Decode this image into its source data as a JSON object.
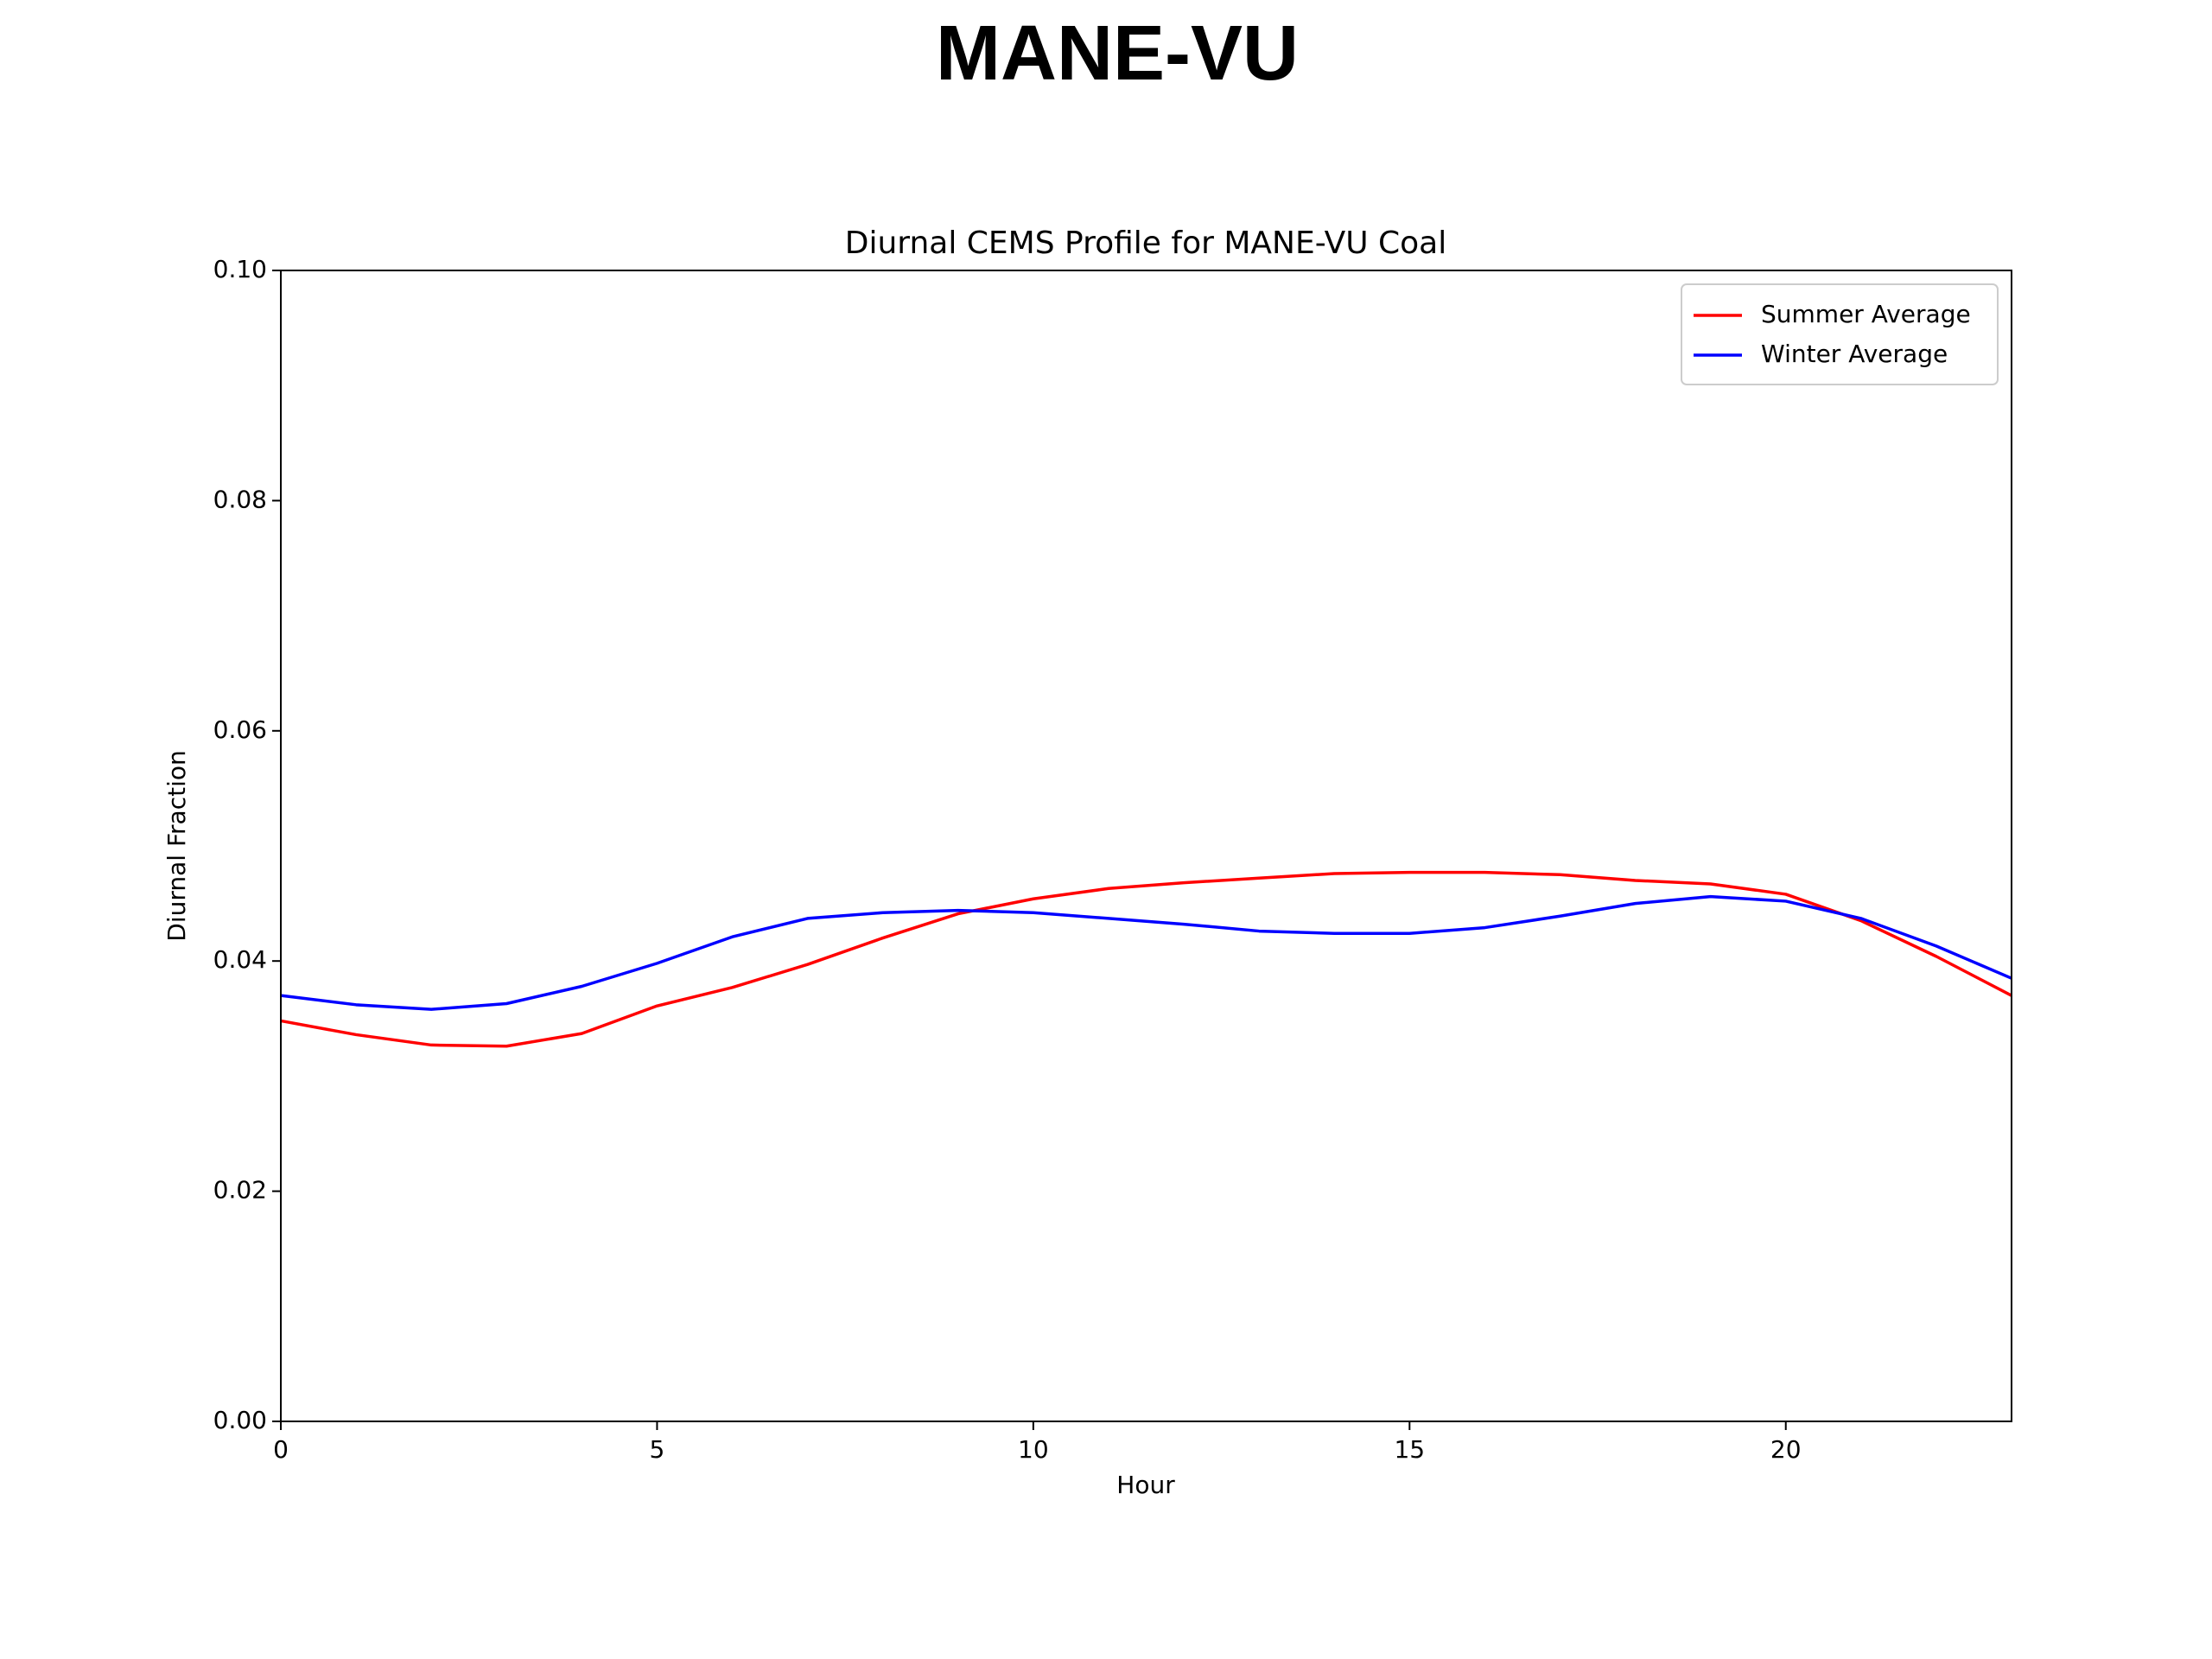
{
  "page_title": "MANE-VU",
  "chart_data": {
    "type": "line",
    "title": "Diurnal CEMS Profile for MANE-VU Coal",
    "x_label": "Hour",
    "y_label": "Diurnal Fraction",
    "x": [
      0,
      1,
      2,
      3,
      4,
      5,
      6,
      7,
      8,
      9,
      10,
      11,
      12,
      13,
      14,
      15,
      16,
      17,
      18,
      19,
      20,
      21,
      22,
      23
    ],
    "series": [
      {
        "name": "Summer Average",
        "color": "#ff0000",
        "values": [
          0.0348,
          0.0336,
          0.0327,
          0.0326,
          0.0337,
          0.0361,
          0.0377,
          0.0397,
          0.042,
          0.0441,
          0.0454,
          0.0463,
          0.0468,
          0.0472,
          0.0476,
          0.0477,
          0.0477,
          0.0475,
          0.047,
          0.0467,
          0.0458,
          0.0435,
          0.0404,
          0.037
        ]
      },
      {
        "name": "Winter Average",
        "color": "#0000ff",
        "values": [
          0.037,
          0.0362,
          0.0358,
          0.0363,
          0.0378,
          0.0398,
          0.0421,
          0.0437,
          0.0442,
          0.0444,
          0.0442,
          0.0437,
          0.0432,
          0.0426,
          0.0424,
          0.0424,
          0.0429,
          0.0439,
          0.045,
          0.0456,
          0.0452,
          0.0437,
          0.0413,
          0.0385
        ]
      }
    ],
    "xlim": [
      0,
      23
    ],
    "xticks": [
      0,
      5,
      10,
      15,
      20
    ],
    "ylim": [
      0,
      0.1
    ],
    "yticks": [
      {
        "value": 0,
        "label": "0.00"
      },
      0.02,
      0.04,
      0.06,
      0.08,
      {
        "value": 0.1,
        "label": "0.10"
      }
    ],
    "grid": false,
    "legend": "upper-right"
  }
}
